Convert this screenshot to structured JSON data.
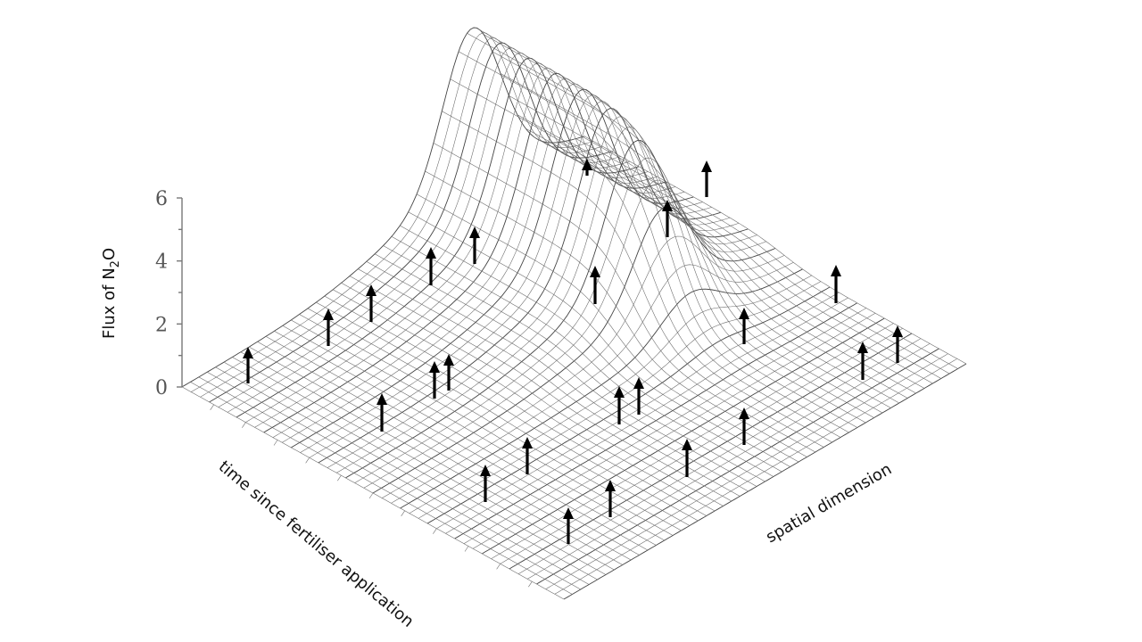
{
  "chart_data": {
    "type": "surface",
    "ylabel_main": "Flux of N",
    "ylabel_sub": "2",
    "ylabel_end": "O",
    "xlabel": "time since fertiliser application",
    "zlabel": "spatial dimension",
    "ylim": [
      0,
      6
    ],
    "yticks": [
      "0",
      "2",
      "4",
      "6"
    ],
    "surface": {
      "baseline": 0,
      "peak": 6,
      "peak_time_fraction": 0.62,
      "peak_space_fraction": 0.72
    },
    "arrow_count": 23
  }
}
